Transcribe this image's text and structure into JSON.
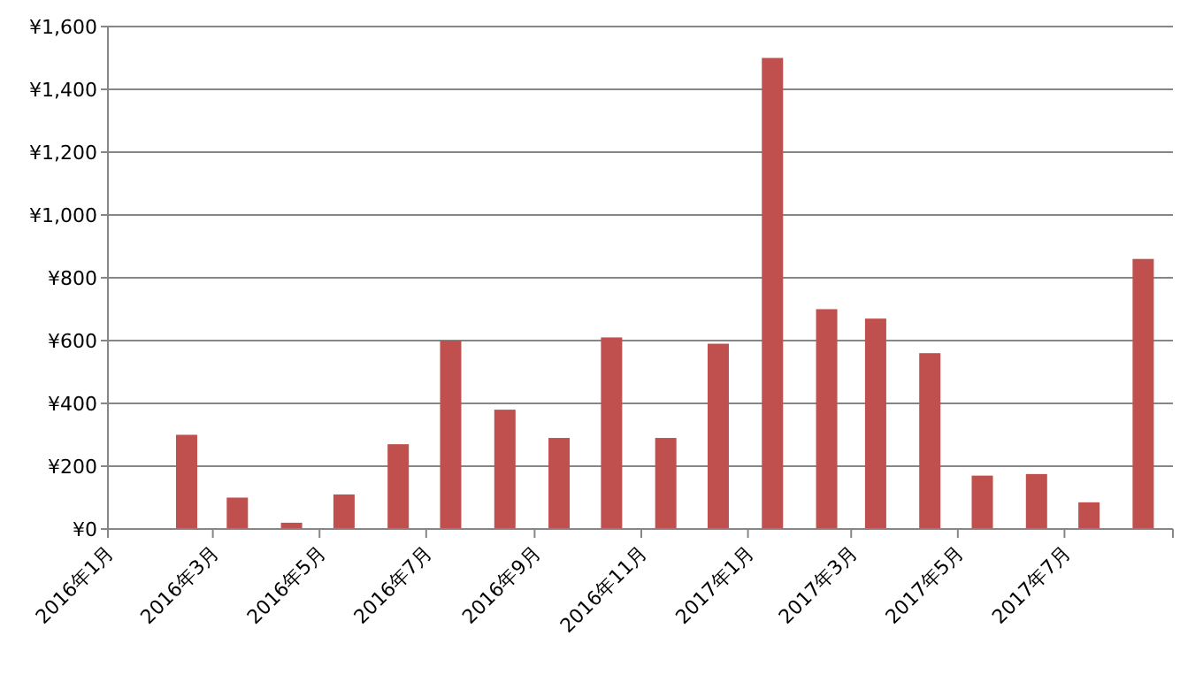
{
  "chart_data": {
    "type": "bar",
    "color": "#c0504d",
    "grid": "y",
    "x": [
      "2016-02-15",
      "2016-03-15",
      "2016-04-15",
      "2016-05-15",
      "2016-06-15",
      "2016-07-15",
      "2016-08-15",
      "2016-09-15",
      "2016-10-15",
      "2016-11-15",
      "2016-12-15",
      "2017-01-15",
      "2017-02-15",
      "2017-03-15",
      "2017-04-15",
      "2017-05-15",
      "2017-06-15",
      "2017-07-15",
      "2017-08-15"
    ],
    "values": [
      300,
      100,
      20,
      110,
      270,
      600,
      380,
      290,
      610,
      290,
      590,
      1500,
      700,
      670,
      560,
      170,
      175,
      85,
      860
    ],
    "xlim": [
      "2016-01",
      "2017-09"
    ],
    "xticks": [
      {
        "value": "2016-01",
        "label": "2016年1月"
      },
      {
        "value": "2016-03",
        "label": "2016年3月"
      },
      {
        "value": "2016-05",
        "label": "2016年5月"
      },
      {
        "value": "2016-07",
        "label": "2016年7月"
      },
      {
        "value": "2016-09",
        "label": "2016年9月"
      },
      {
        "value": "2016-11",
        "label": "2016年11月"
      },
      {
        "value": "2017-01",
        "label": "2017年1月"
      },
      {
        "value": "2017-03",
        "label": "2017年3月"
      },
      {
        "value": "2017-05",
        "label": "2017年5月"
      },
      {
        "value": "2017-07",
        "label": "2017年7月"
      },
      {
        "value": "2017-09",
        "label": null
      }
    ],
    "ylim": [
      0,
      1600
    ],
    "yticks": [
      {
        "value": 0,
        "label": "¥0"
      },
      {
        "value": 200,
        "label": "¥200"
      },
      {
        "value": 400,
        "label": "¥400"
      },
      {
        "value": 600,
        "label": "¥600"
      },
      {
        "value": 800,
        "label": "¥800"
      },
      {
        "value": 1000,
        "label": "¥1,000"
      },
      {
        "value": 1200,
        "label": "¥1,200"
      },
      {
        "value": 1400,
        "label": "¥1,400"
      },
      {
        "value": 1600,
        "label": "¥1,600"
      }
    ]
  }
}
